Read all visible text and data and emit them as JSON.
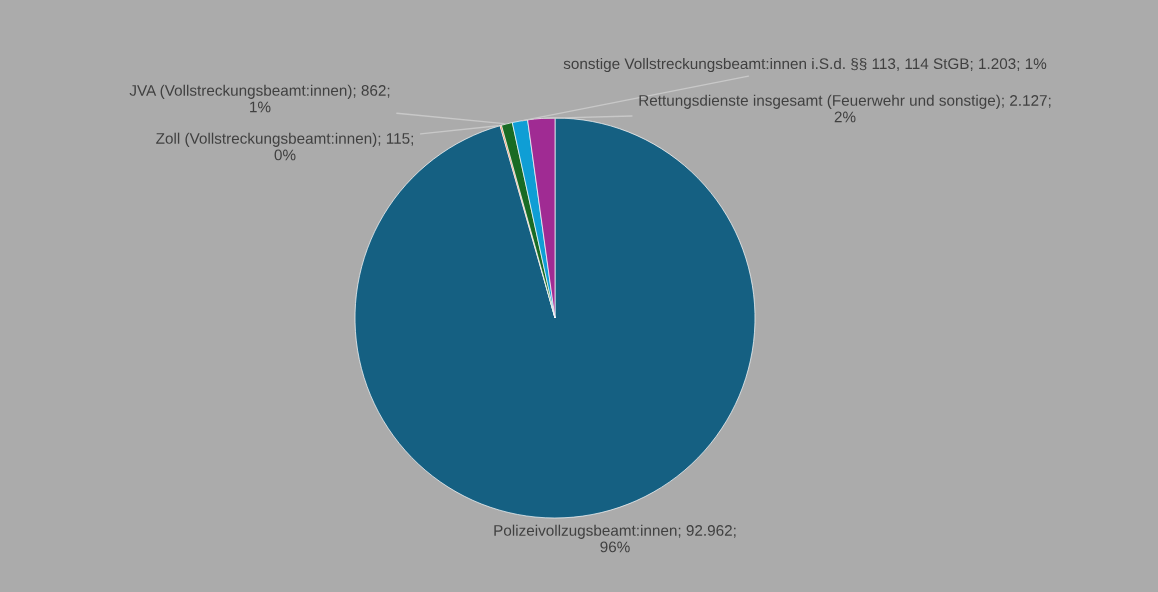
{
  "chart_data": {
    "type": "pie",
    "categories": [
      "Polizeivollzugsbeamt:innen",
      "Zoll (Vollstreckungsbeamt:innen)",
      "JVA (Vollstreckungsbeamt:innen)",
      "sonstige Vollstreckungsbeamt:innen i.S.d. §§ 113, 114 StGB",
      "Rettungsdienste insgesamt (Feuerwehr und sonstige)"
    ],
    "values": [
      92962,
      115,
      862,
      1203,
      2127
    ],
    "value_labels": [
      "92.962; 96%",
      "115; 0%",
      "862; 1%",
      "1.203; 1%",
      "2.127; 2%"
    ],
    "colors": [
      "#156082",
      "#e97132",
      "#196b24",
      "#0f9ed5",
      "#a02b93"
    ],
    "legend": false
  }
}
